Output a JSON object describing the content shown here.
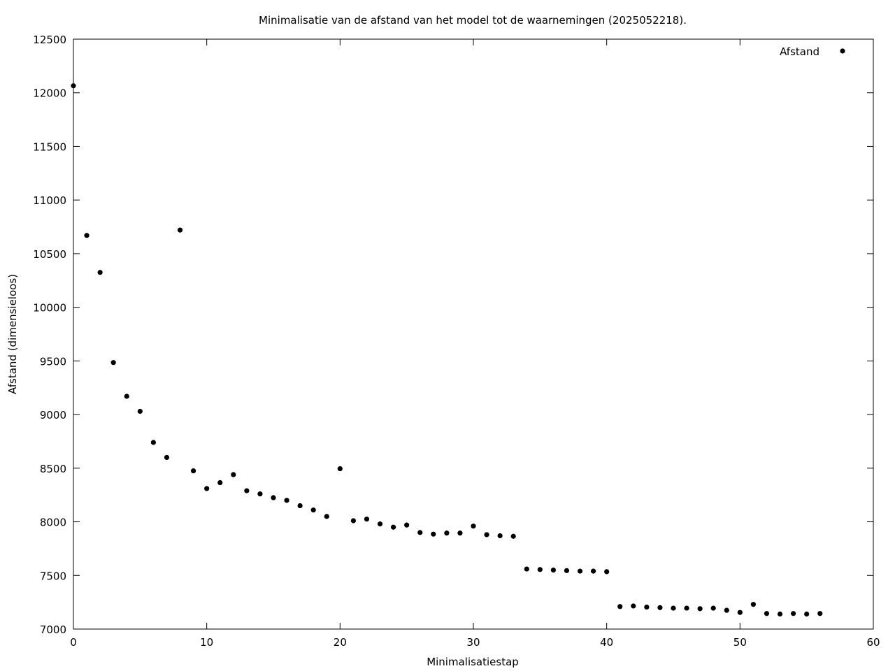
{
  "chart_data": {
    "type": "scatter",
    "title": "Minimalisatie van de afstand van het model tot de waarnemingen (2025052218).",
    "xlabel": "Minimalisatiestap",
    "ylabel": "Afstand (dimensieloos)",
    "xlim": [
      0,
      60
    ],
    "ylim": [
      7000,
      12500
    ],
    "xticks": [
      0,
      10,
      20,
      30,
      40,
      50,
      60
    ],
    "yticks": [
      7000,
      7500,
      8000,
      8500,
      9000,
      9500,
      10000,
      10500,
      11000,
      11500,
      12000,
      12500
    ],
    "grid": false,
    "legend_position": "top-right",
    "marker_color": "#000000",
    "series": [
      {
        "name": "Afstand",
        "x": [
          0,
          1,
          2,
          3,
          4,
          5,
          6,
          7,
          8,
          9,
          10,
          11,
          12,
          13,
          14,
          15,
          16,
          17,
          18,
          19,
          20,
          21,
          22,
          23,
          24,
          25,
          26,
          27,
          28,
          29,
          30,
          31,
          32,
          33,
          34,
          35,
          36,
          37,
          38,
          39,
          40,
          41,
          42,
          43,
          44,
          45,
          46,
          47,
          48,
          49,
          50,
          51,
          52,
          53,
          54,
          55,
          56
        ],
        "y": [
          12065,
          10670,
          10325,
          9485,
          9170,
          9030,
          8740,
          8600,
          10720,
          8475,
          8310,
          8365,
          8440,
          8290,
          8260,
          8225,
          8200,
          8150,
          8110,
          8050,
          8495,
          8010,
          8025,
          7980,
          7950,
          7970,
          7900,
          7885,
          7895,
          7895,
          7960,
          7880,
          7870,
          7865,
          7560,
          7555,
          7550,
          7545,
          7540,
          7540,
          7535,
          7210,
          7215,
          7205,
          7200,
          7195,
          7195,
          7190,
          7195,
          7175,
          7155,
          7230,
          7145,
          7140,
          7145,
          7140,
          7145
        ]
      }
    ]
  }
}
